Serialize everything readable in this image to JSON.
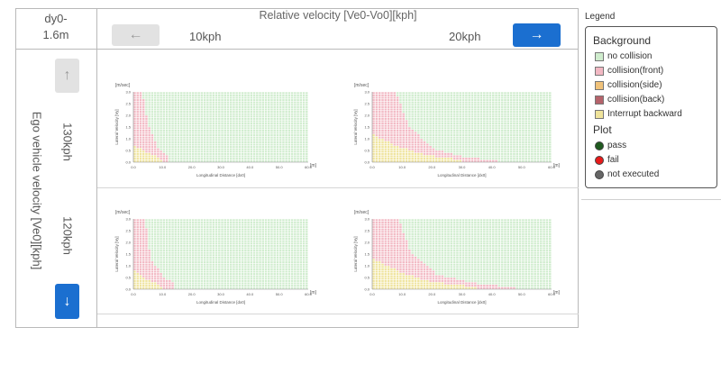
{
  "dy_label_line1": "dy0-",
  "dy_label_line2": "1.6m",
  "relative_title": "Relative velocity [Ve0-Vo0][kph]",
  "nav": {
    "left_arrow": "←",
    "right_arrow": "→",
    "up_arrow": "↑",
    "down_arrow": "↓"
  },
  "columns": [
    "10kph",
    "20kph"
  ],
  "rows": [
    "130kph",
    "120kph"
  ],
  "ego_label": "Ego vehicle velocity [Ve0][kph]",
  "chart_common": {
    "y_unit": "[m/sec]",
    "x_unit": "[m]",
    "ylabel": "Lateral Velocity [Vy]",
    "xlabel": "Longitudinal Distance [dx0]",
    "y_ticks": [
      "3.0",
      "2.5",
      "2.0",
      "1.5",
      "1.0",
      "0.5",
      "0.0"
    ],
    "x_ticks": [
      "0.0",
      "10.0",
      "20.0",
      "30.0",
      "40.0",
      "50.0",
      "60.0"
    ]
  },
  "chart_data": [
    {
      "type": "heatmap",
      "row": "130kph",
      "column": "10kph",
      "xlim": [
        0,
        60
      ],
      "ylim": [
        0,
        3
      ],
      "front_extent": [
        {
          "x": 0,
          "y": 3.0
        },
        {
          "x": 3,
          "y": 3.0
        },
        {
          "x": 5,
          "y": 1.6
        },
        {
          "x": 8,
          "y": 0.7
        },
        {
          "x": 12,
          "y": 0.2
        }
      ],
      "interrupt_extent": [
        {
          "x": 0,
          "y": 0.7
        },
        {
          "x": 5,
          "y": 0.4
        },
        {
          "x": 10,
          "y": 0.1
        }
      ]
    },
    {
      "type": "heatmap",
      "row": "130kph",
      "column": "20kph",
      "xlim": [
        0,
        60
      ],
      "ylim": [
        0,
        3
      ],
      "front_extent": [
        {
          "x": 0,
          "y": 3.0
        },
        {
          "x": 8,
          "y": 3.0
        },
        {
          "x": 12,
          "y": 1.6
        },
        {
          "x": 20,
          "y": 0.6
        },
        {
          "x": 30,
          "y": 0.25
        },
        {
          "x": 42,
          "y": 0.05
        }
      ],
      "interrupt_extent": [
        {
          "x": 0,
          "y": 1.2
        },
        {
          "x": 8,
          "y": 0.7
        },
        {
          "x": 18,
          "y": 0.3
        },
        {
          "x": 30,
          "y": 0.1
        }
      ]
    },
    {
      "type": "heatmap",
      "row": "120kph",
      "column": "10kph",
      "xlim": [
        0,
        60
      ],
      "ylim": [
        0,
        3
      ],
      "front_extent": [
        {
          "x": 0,
          "y": 3.0
        },
        {
          "x": 4,
          "y": 3.0
        },
        {
          "x": 6,
          "y": 1.3
        },
        {
          "x": 10,
          "y": 0.6
        },
        {
          "x": 14,
          "y": 0.2
        }
      ],
      "interrupt_extent": [
        {
          "x": 0,
          "y": 0.8
        },
        {
          "x": 5,
          "y": 0.4
        },
        {
          "x": 10,
          "y": 0.1
        }
      ]
    },
    {
      "type": "heatmap",
      "row": "120kph",
      "column": "20kph",
      "xlim": [
        0,
        60
      ],
      "ylim": [
        0,
        3
      ],
      "front_extent": [
        {
          "x": 0,
          "y": 3.0
        },
        {
          "x": 9,
          "y": 3.0
        },
        {
          "x": 13,
          "y": 1.5
        },
        {
          "x": 22,
          "y": 0.6
        },
        {
          "x": 35,
          "y": 0.25
        },
        {
          "x": 48,
          "y": 0.05
        }
      ],
      "interrupt_extent": [
        {
          "x": 0,
          "y": 1.3
        },
        {
          "x": 10,
          "y": 0.7
        },
        {
          "x": 20,
          "y": 0.3
        },
        {
          "x": 35,
          "y": 0.1
        }
      ]
    }
  ],
  "legend": {
    "title": "Legend",
    "background_heading": "Background",
    "background_items": [
      {
        "label": "no collision",
        "color": "#cfeccd"
      },
      {
        "label": "collision(front)",
        "color": "#f2b8c3"
      },
      {
        "label": "collision(side)",
        "color": "#f0c27a"
      },
      {
        "label": "collision(back)",
        "color": "#b5636b"
      },
      {
        "label": "Interrupt backward",
        "color": "#efe39b"
      }
    ],
    "plot_heading": "Plot",
    "plot_items": [
      {
        "label": "pass",
        "color": "#1f5a1f"
      },
      {
        "label": "fail",
        "color": "#e81a1a"
      },
      {
        "label": "not executed",
        "color": "#666666"
      }
    ]
  },
  "colors": {
    "accent": "#1b6fd0",
    "no_collision": "#cfeccd",
    "front": "#f2b8c3",
    "interrupt": "#efe39b"
  }
}
